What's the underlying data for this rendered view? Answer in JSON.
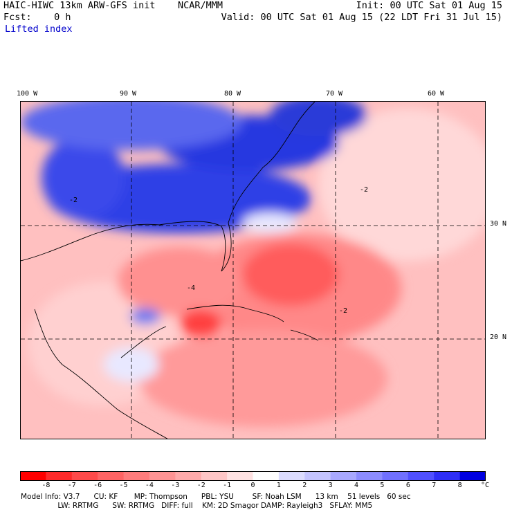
{
  "header": {
    "title": "HAIC-HIWC 13km ARW-GFS init    NCAR/MMM",
    "fcst": "Fcst:    0 h",
    "field": "Lifted index",
    "init": "Init: 00 UTC Sat 01 Aug 15",
    "valid": "Valid: 00 UTC Sat 01 Aug 15 (22 LDT Fri 31 Jul 15)"
  },
  "map": {
    "lon_labels": [
      "100 W",
      "90 W",
      "80 W",
      "70 W",
      "60 W"
    ],
    "lat_labels": [
      "30 N",
      "20 N"
    ],
    "contour_labels": [
      "-2",
      "-4"
    ]
  },
  "colorbar": {
    "labels": [
      "-8",
      "-7",
      "-6",
      "-5",
      "-4",
      "-3",
      "-2",
      "-1",
      "0",
      "1",
      "2",
      "3",
      "4",
      "5",
      "6",
      "7",
      "8"
    ],
    "unit": "°C",
    "colors": [
      "#ff0000",
      "#ff2a2a",
      "#ff4a4a",
      "#ff6464",
      "#ff7c7c",
      "#ff9494",
      "#ffaaaa",
      "#ffc6c6",
      "#ffe2e2",
      "#ffffff",
      "#dcdcff",
      "#c4c4ff",
      "#a8a8ff",
      "#8c8cff",
      "#7070ff",
      "#5050ff",
      "#2e2ef6",
      "#0000e0"
    ]
  },
  "footer": {
    "line1": "Model Info: V3.7      CU: KF       MP: Thompson      PBL: YSU        SF: Noah LSM      13 km    51 levels   60 sec",
    "line2": "                LW: RRTMG      SW: RRTMG   DIFF: full    KM: 2D Smagor DAMP: Rayleigh3   SFLAY: MM5"
  }
}
